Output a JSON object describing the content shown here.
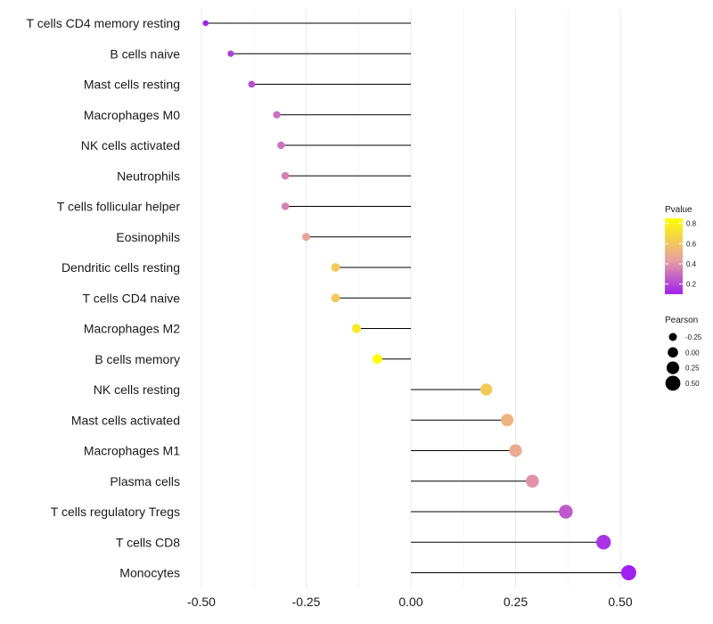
{
  "chart_data": {
    "type": "lollipop",
    "title": "",
    "xlabel": "",
    "ylabel": "",
    "xlim": [
      -0.5,
      0.55
    ],
    "x_ticks": [
      -0.5,
      -0.25,
      0.0,
      0.25,
      0.5
    ],
    "x_tick_labels": [
      "-0.50",
      "-0.25",
      "0.00",
      "0.25",
      "0.50"
    ],
    "categories": [
      "T cells CD4 memory resting",
      "B cells naive",
      "Mast cells resting",
      "Macrophages M0",
      "NK cells activated",
      "Neutrophils",
      "T cells follicular helper",
      "Eosinophils",
      "Dendritic cells resting",
      "T cells CD4 naive",
      "Macrophages M2",
      "B cells memory",
      "NK cells resting",
      "Mast cells activated",
      "Macrophages M1",
      "Plasma cells",
      "T cells regulatory  Tregs ",
      "T cells CD8",
      "Monocytes"
    ],
    "pearson": [
      -0.49,
      -0.43,
      -0.38,
      -0.32,
      -0.31,
      -0.3,
      -0.3,
      -0.25,
      -0.18,
      -0.18,
      -0.13,
      -0.08,
      0.18,
      0.23,
      0.25,
      0.29,
      0.37,
      0.46,
      0.52
    ],
    "pvalue": [
      0.1,
      0.18,
      0.22,
      0.3,
      0.32,
      0.35,
      0.35,
      0.45,
      0.62,
      0.62,
      0.75,
      0.85,
      0.62,
      0.52,
      0.48,
      0.4,
      0.25,
      0.15,
      0.1
    ],
    "legend": {
      "color_title": "Pvalue",
      "color_ticks": [
        0.2,
        0.4,
        0.6,
        0.8
      ],
      "color_tick_labels": [
        "0.2",
        "0.4",
        "0.6",
        "0.8"
      ],
      "color_range": [
        0.1,
        0.85
      ],
      "color_low": "#a020f0",
      "color_mid": "#e8a0a0",
      "color_high": "#ffff00",
      "size_title": "Pearson",
      "size_values": [
        -0.25,
        0.0,
        0.25,
        0.5
      ],
      "size_labels": [
        "-0.25",
        "0.00",
        "0.25",
        "0.50"
      ]
    },
    "grid": true
  }
}
